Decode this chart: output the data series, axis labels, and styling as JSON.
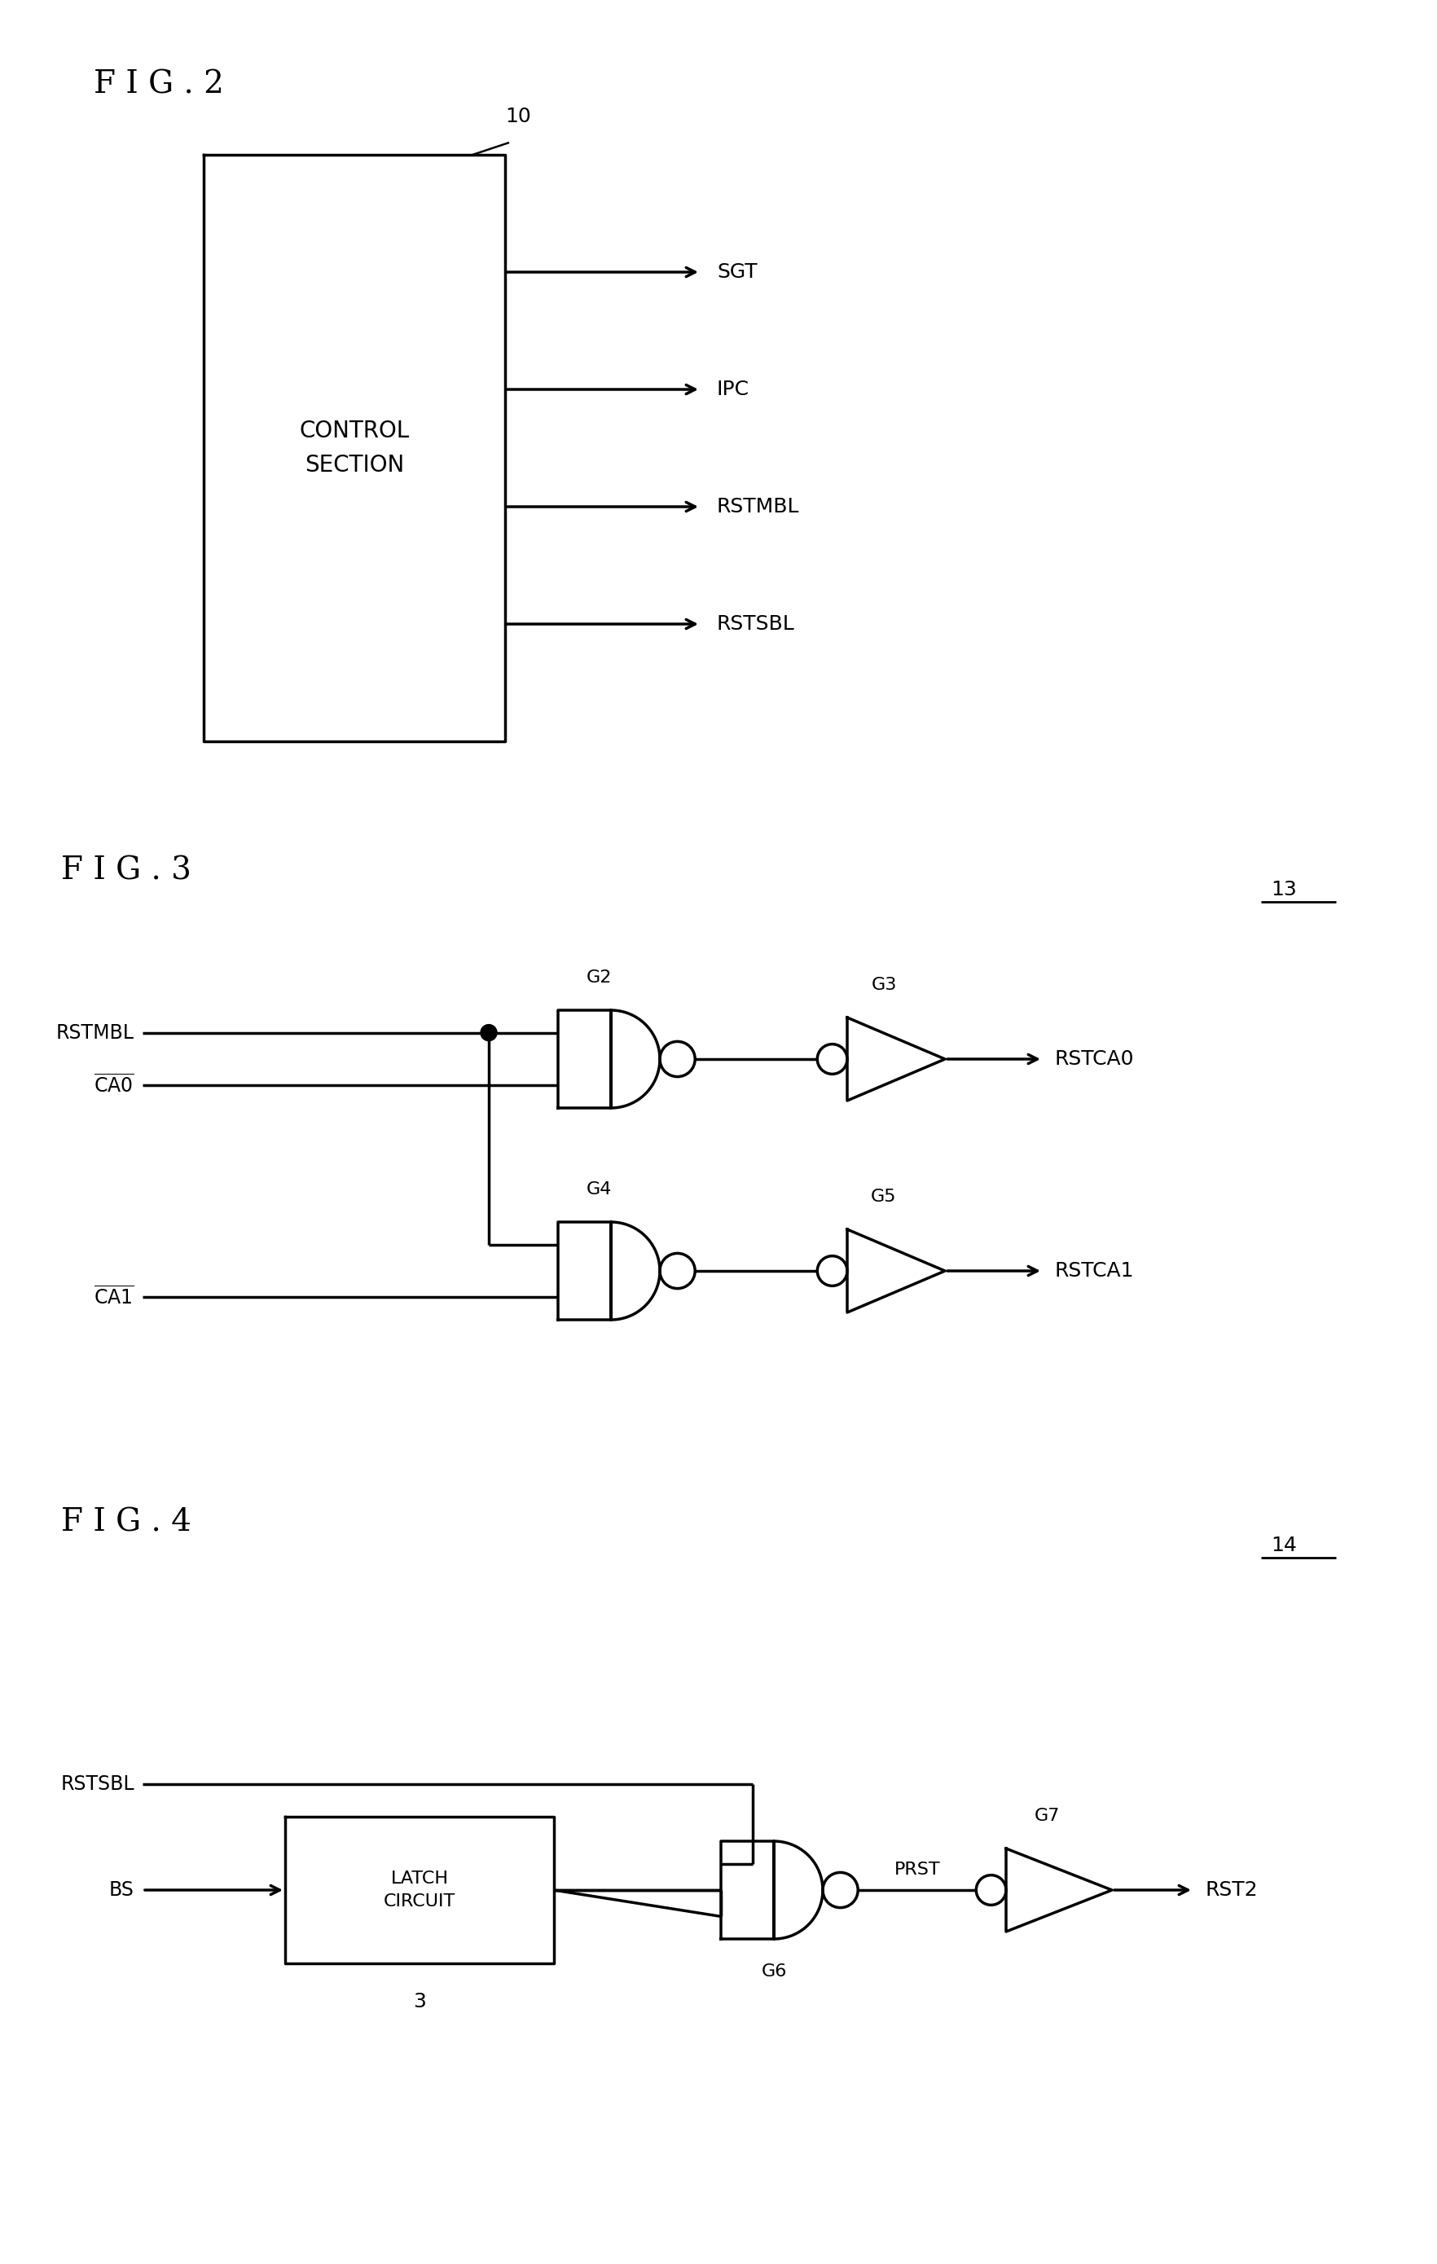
{
  "fig2": {
    "title": "F I G . 2",
    "label": "10",
    "box_label": "CONTROL\nSECTION",
    "outputs": [
      "SGT",
      "IPC",
      "RSTMBL",
      "RSTSBL"
    ]
  },
  "fig3": {
    "title": "F I G . 3",
    "label": "13",
    "inputs": [
      "RSTMBL",
      "CA0",
      "CA1"
    ],
    "outputs": [
      "RSTCA0",
      "RSTCA1"
    ],
    "gate_labels": [
      "G2",
      "G3",
      "G4",
      "G5"
    ]
  },
  "fig4": {
    "title": "F I G . 4",
    "label": "14",
    "inputs": [
      "RSTSBL",
      "BS"
    ],
    "outputs": [
      "RST2"
    ],
    "box_label": "LATCH\nCIRCUIT",
    "box_num": "3",
    "gate_labels": [
      "G6",
      "G7"
    ],
    "mid_label": "PRST"
  },
  "font_size_title": 28,
  "font_size_label": 18,
  "font_size_text": 17,
  "font_size_gate": 16,
  "line_color": "#000000",
  "bg_color": "#ffffff"
}
